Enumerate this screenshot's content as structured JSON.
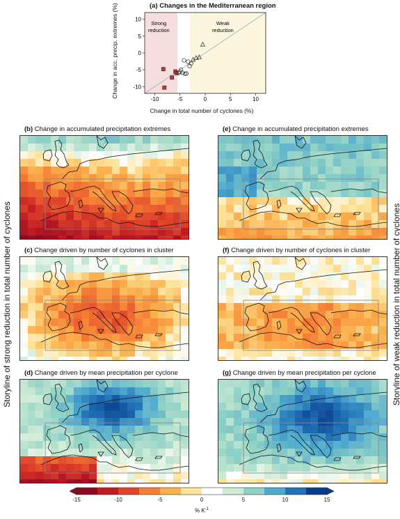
{
  "scatter": {
    "title": "(a) Changes in the Mediterranean region",
    "xlabel": "Change in total number of cyclones (%)",
    "ylabel": "Change in acc. precip. extremes (%)",
    "strong_label": [
      "Strong",
      "reduction"
    ],
    "weak_label": [
      "Weak",
      "reduction"
    ],
    "strong_color": "#f7dede",
    "weak_color": "#fbf6dd"
  },
  "chart_data": {
    "type": "scatter",
    "xlim": [
      -12,
      12
    ],
    "ylim": [
      -12,
      12
    ],
    "xticks": [
      "-10",
      "-5",
      "0",
      "5",
      "10"
    ],
    "yticks": [
      "-10",
      "-5",
      "0",
      "5",
      "10"
    ],
    "series": [
      {
        "marker": "square",
        "color": "#c0392b",
        "x": [
          -8.3,
          -8.1,
          -6.6,
          -5.9,
          -5.7
        ],
        "y": [
          -4.8,
          -10.3,
          -7.3,
          -5.5,
          -6.0
        ]
      },
      {
        "marker": "circle",
        "x": [
          -5.3,
          -5.0,
          -4.8,
          -4.5,
          -4.2,
          -4.0,
          -3.7,
          -3.4,
          -3.1,
          -2.8
        ],
        "y": [
          -6.0,
          -5.6,
          -5.0,
          -5.9,
          -2.2,
          -6.2,
          -6.1,
          -2.6,
          -3.9,
          -3.1
        ]
      },
      {
        "marker": "triangle",
        "x": [
          -2.4,
          -1.8,
          -1.2,
          -0.5
        ],
        "y": [
          -2.0,
          -1.5,
          -1.3,
          2.5
        ]
      }
    ],
    "reference_line": "1:1"
  },
  "panels": {
    "b": {
      "letter": "(b)",
      "title": "Change in accumulated precipitation extremes"
    },
    "c": {
      "letter": "(c)",
      "title": "Change driven by number of cyclones in cluster"
    },
    "d": {
      "letter": "(d)",
      "title": "Change driven by mean precipitation per cyclone"
    },
    "e": {
      "letter": "(e)",
      "title": "Change in accumulated precipitation extremes"
    },
    "f": {
      "letter": "(f)",
      "title": "Change driven by number of cyclones in cluster"
    },
    "g": {
      "letter": "(g)",
      "title": "Change driven by mean precipitation per cyclone"
    }
  },
  "side_labels": {
    "left": "Storyline of strong reduction in total number of cyclones",
    "right": "Storyline of weak reduction in total number of cyclones"
  },
  "colorbar": {
    "ticks": [
      "-15",
      "-10",
      "-5",
      "0",
      "5",
      "10",
      "15"
    ],
    "unit": "% K",
    "unit_sup": "-1",
    "colors": [
      "#8b0a1e",
      "#c11b24",
      "#e0452b",
      "#f57d35",
      "#fbb14e",
      "#fde39b",
      "#ffffff",
      "#cdebd5",
      "#8fd1c6",
      "#4fa9cf",
      "#2171b5",
      "#083d8c"
    ]
  }
}
